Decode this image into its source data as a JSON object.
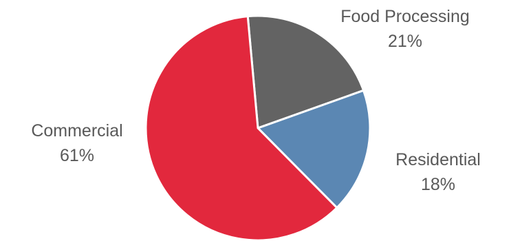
{
  "chart_data": {
    "type": "pie",
    "slices": [
      {
        "label": "Food Processing",
        "value": 21,
        "display": "21%",
        "color": "#636363"
      },
      {
        "label": "Residential",
        "value": 18,
        "display": "18%",
        "color": "#5b87b3"
      },
      {
        "label": "Commercial",
        "value": 61,
        "display": "61%",
        "color": "#e2283d"
      }
    ],
    "legend": "none",
    "data_labels": "outside"
  }
}
